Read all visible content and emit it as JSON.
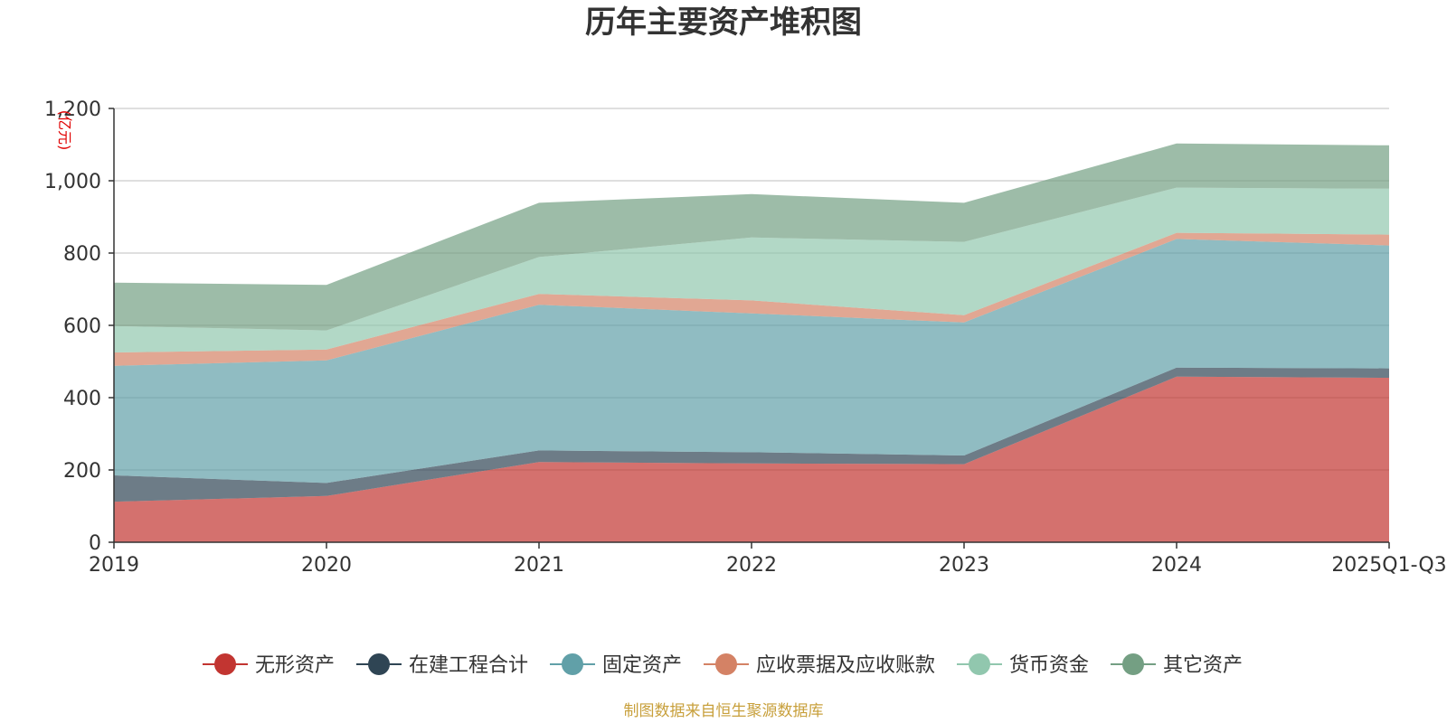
{
  "chart_data": {
    "type": "area",
    "stacked": true,
    "title": "历年主要资产堆积图",
    "unit_label": "(亿元)",
    "categories": [
      "2019",
      "2020",
      "2021",
      "2022",
      "2023",
      "2024",
      "2025Q1-Q3"
    ],
    "ylim": [
      0,
      1200
    ],
    "yticks": [
      0,
      200,
      400,
      600,
      800,
      1000,
      1200
    ],
    "ytick_labels": [
      "0",
      "200",
      "400",
      "600",
      "800",
      "1,000",
      "1,200"
    ],
    "grid": true,
    "legend_position": "bottom",
    "series": [
      {
        "name": "无形资产",
        "color": "#c23531",
        "values": [
          112,
          128,
          222,
          218,
          216,
          458,
          455
        ]
      },
      {
        "name": "在建工程合计",
        "color": "#2f4554",
        "values": [
          73,
          36,
          32,
          31,
          24,
          25,
          26
        ]
      },
      {
        "name": "固定资产",
        "color": "#61a0a8",
        "values": [
          303,
          339,
          403,
          384,
          368,
          356,
          340
        ]
      },
      {
        "name": "应收票据及应收账款",
        "color": "#d48265",
        "values": [
          37,
          30,
          30,
          36,
          20,
          17,
          30
        ]
      },
      {
        "name": "货币资金",
        "color": "#91c7ae",
        "values": [
          73,
          53,
          102,
          174,
          203,
          125,
          127
        ]
      },
      {
        "name": "其它资产",
        "color": "#749f83",
        "values": [
          120,
          126,
          150,
          120,
          108,
          122,
          120
        ]
      }
    ],
    "source": "制图数据来自恒生聚源数据库"
  }
}
